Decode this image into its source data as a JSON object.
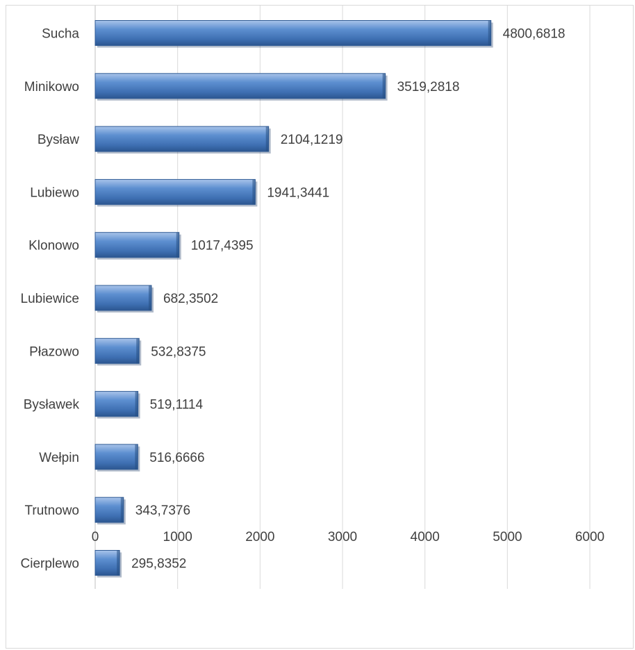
{
  "chart_data": {
    "type": "bar",
    "orientation": "horizontal",
    "categories": [
      "Sucha",
      "Minikowo",
      "Bysław",
      "Lubiewo",
      "Klonowo",
      "Lubiewice",
      "Płazowo",
      "Bysławek",
      "Wełpin",
      "Trutnowo",
      "Cierplewo"
    ],
    "values": [
      4800.6818,
      3519.2818,
      2104.1219,
      1941.3441,
      1017.4395,
      682.3502,
      532.8375,
      519.1114,
      516.6666,
      343.7376,
      295.8352
    ],
    "data_labels": [
      "4800,6818",
      "3519,2818",
      "2104,1219",
      "1941,3441",
      "1017,4395",
      "682,3502",
      "532,8375",
      "519,1114",
      "516,6666",
      "343,7376",
      "295,8352"
    ],
    "x_ticks": [
      "0",
      "1000",
      "2000",
      "3000",
      "4000",
      "5000",
      "6000"
    ],
    "xlim": [
      0,
      6000
    ],
    "title": "",
    "xlabel": "",
    "ylabel": "",
    "grid": "vertical",
    "legend": "none",
    "bar_color": "#4a7ebb",
    "gridline_color": "#d9d9d9"
  }
}
